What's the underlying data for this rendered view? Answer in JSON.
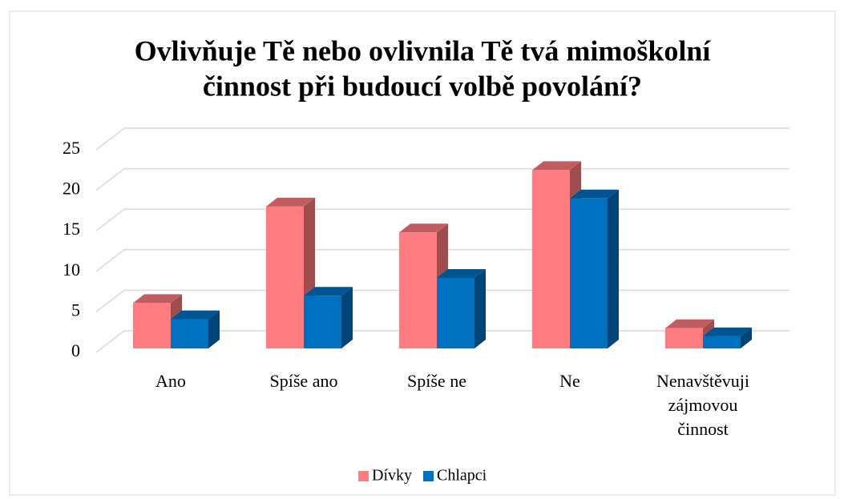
{
  "chart_data": {
    "type": "bar3d",
    "title": [
      "Ovlivňuje Tě nebo ovlivnila Tě tvá mimoškolní",
      "činnost při budoucí volbě povolání?"
    ],
    "categories": [
      [
        "Ano"
      ],
      [
        "Spíše ano"
      ],
      [
        "Spíše ne"
      ],
      [
        "Ne"
      ],
      [
        "Nenavštěvuji",
        "zájmovou",
        "činnost"
      ]
    ],
    "series": [
      {
        "name": "Dívky",
        "color": "#ff7c80",
        "values": [
          5.6,
          17.5,
          14.3,
          22,
          2.5
        ]
      },
      {
        "name": "Chlapci",
        "color": "#0070c0",
        "values": [
          3.6,
          6.5,
          8.7,
          18.5,
          1.5
        ]
      }
    ],
    "ylim": [
      0,
      25
    ],
    "yticks": [
      0,
      5,
      10,
      15,
      20,
      25
    ],
    "grid": true,
    "legend": "bottom"
  }
}
